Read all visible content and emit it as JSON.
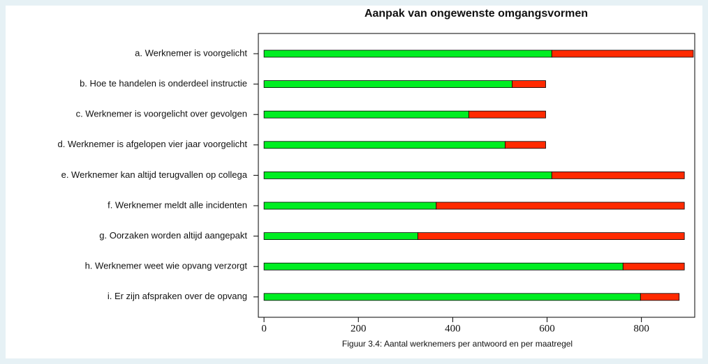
{
  "chart_data": {
    "type": "stacked-bar-horizontal",
    "title": "Aanpak van ongewenste omgangsvormen",
    "caption": "Figuur 3.4: Aantal werknemers per antwoord en per maatregel",
    "categories": [
      "a. Werknemer is voorgelicht",
      "b. Hoe te handelen is onderdeel instructie",
      "c. Werknemer is voorgelicht over gevolgen",
      "d. Werknemer is afgelopen vier jaar voorgelicht",
      "e. Werknemer kan altijd terugvallen op collega",
      "f. Werknemer meldt alle incidenten",
      "g. Oorzaken worden altijd aangepakt",
      "h. Werknemer weet wie opvang verzorgt",
      "i. Er zijn afspraken over de opvang"
    ],
    "series": [
      {
        "color": "#00ee22",
        "values": [
          610,
          526,
          434,
          511,
          610,
          365,
          326,
          761,
          798
        ]
      },
      {
        "color": "#ff2a00",
        "values": [
          300,
          71,
          163,
          86,
          281,
          526,
          565,
          130,
          82
        ]
      }
    ],
    "xlim": [
      -12,
      913
    ],
    "xticks": [
      0,
      200,
      400,
      600,
      800
    ]
  }
}
